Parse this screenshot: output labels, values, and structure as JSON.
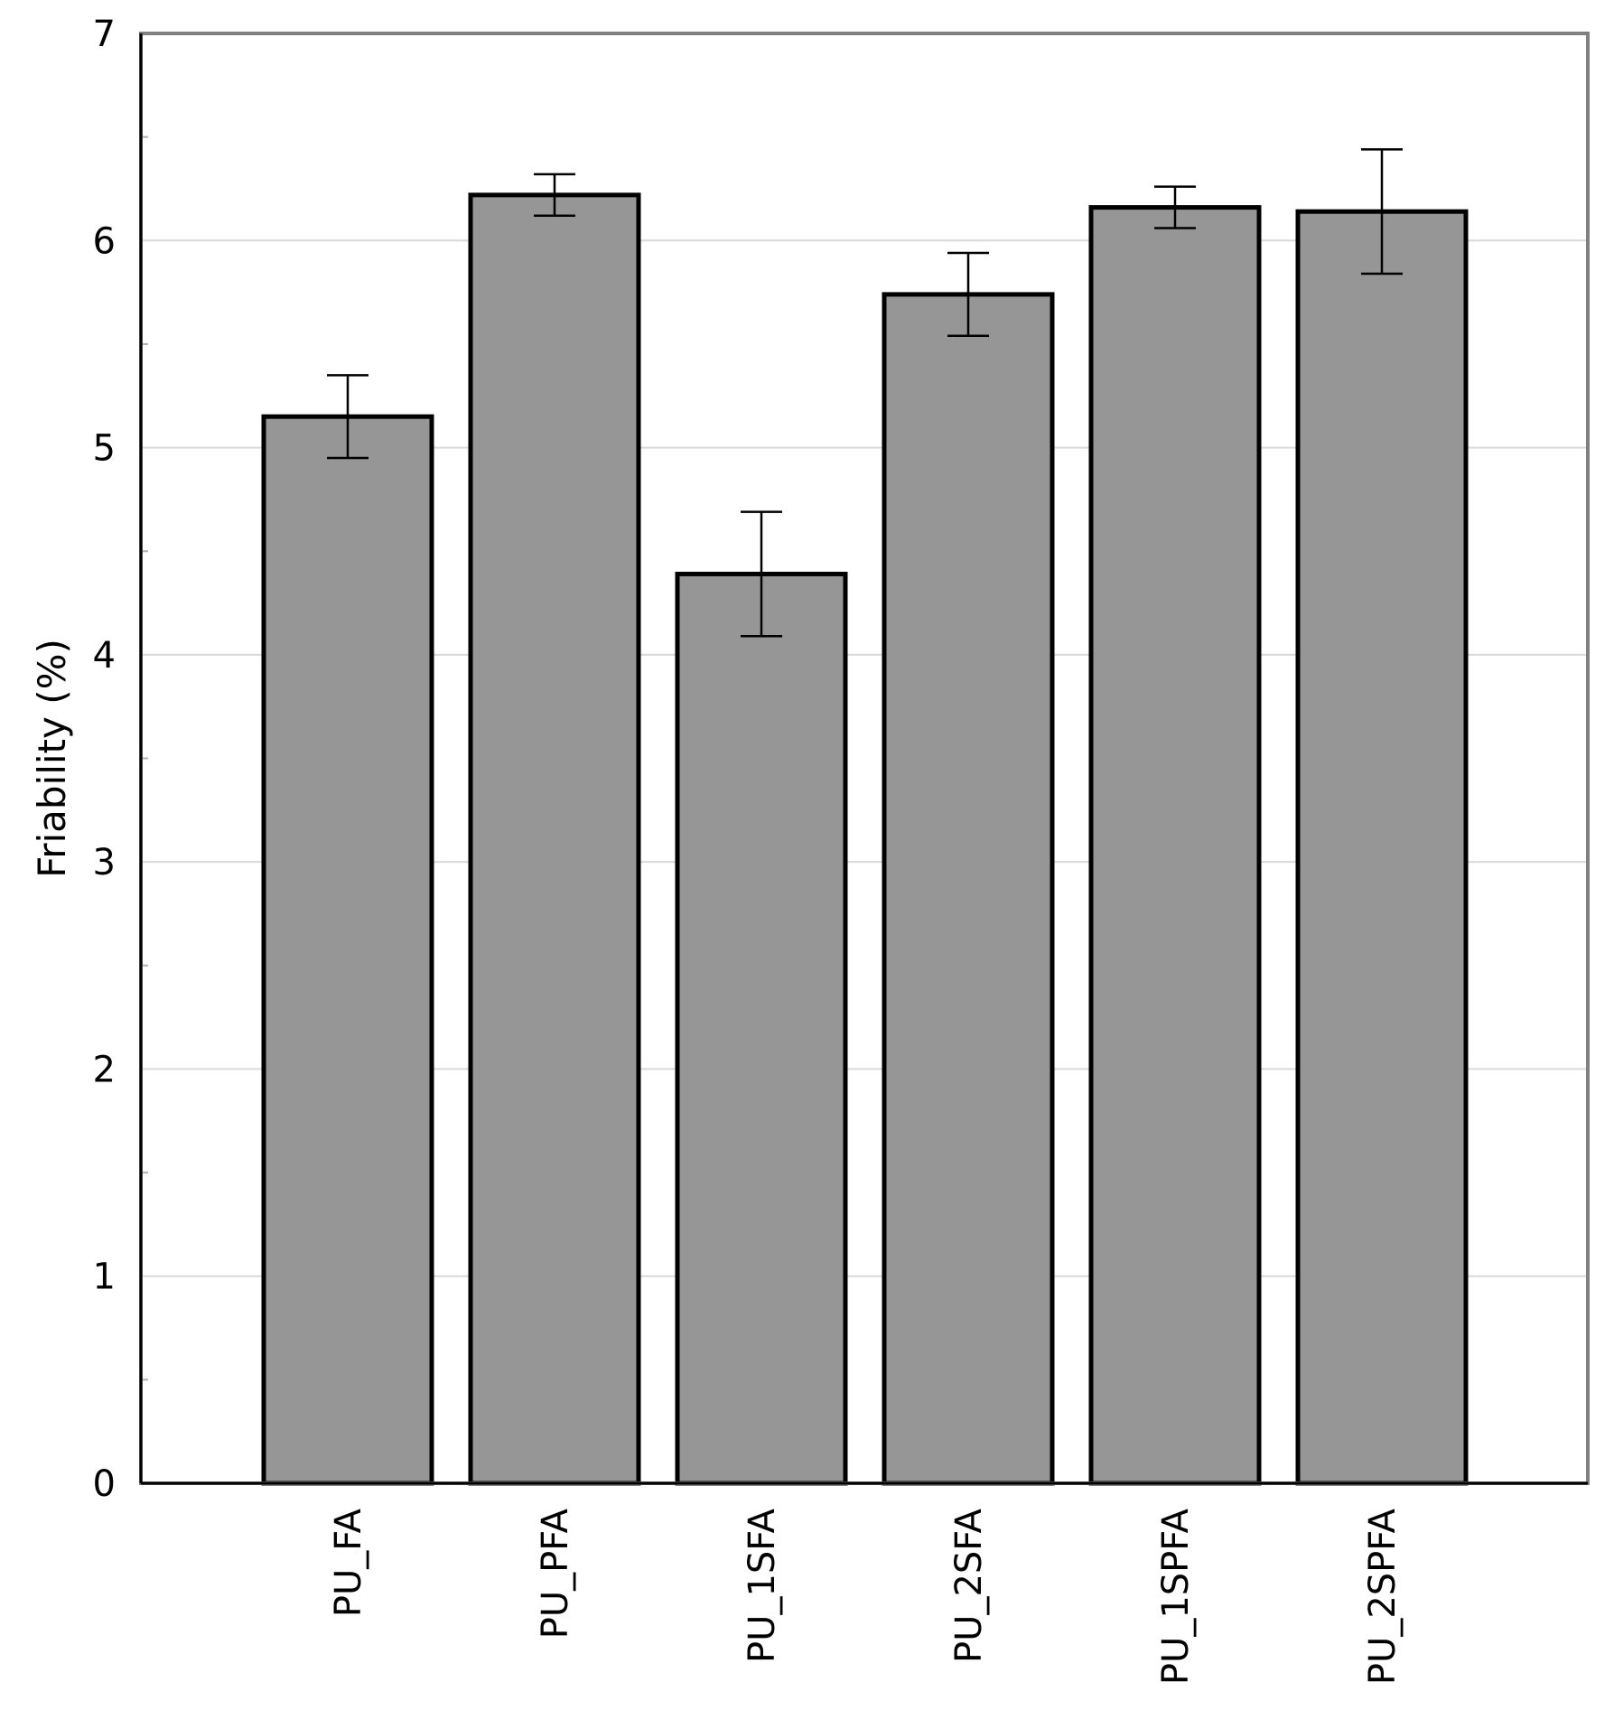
{
  "chart_data": {
    "type": "bar",
    "ylabel": "Friability (%)",
    "ylim": [
      0,
      7
    ],
    "yticks": [
      0,
      1,
      2,
      3,
      4,
      5,
      6,
      7
    ],
    "categories": [
      "PU_FA",
      "PU_PFA",
      "PU_1SFA",
      "PU_2SFA",
      "PU_1SPFA",
      "PU_2SPFA"
    ],
    "values": [
      5.15,
      6.22,
      4.39,
      5.74,
      6.16,
      6.14
    ],
    "errors": [
      0.2,
      0.1,
      0.3,
      0.2,
      0.1,
      0.3
    ],
    "grid": true,
    "bar_color": "#969696",
    "bar_edge_color": "#000000"
  }
}
